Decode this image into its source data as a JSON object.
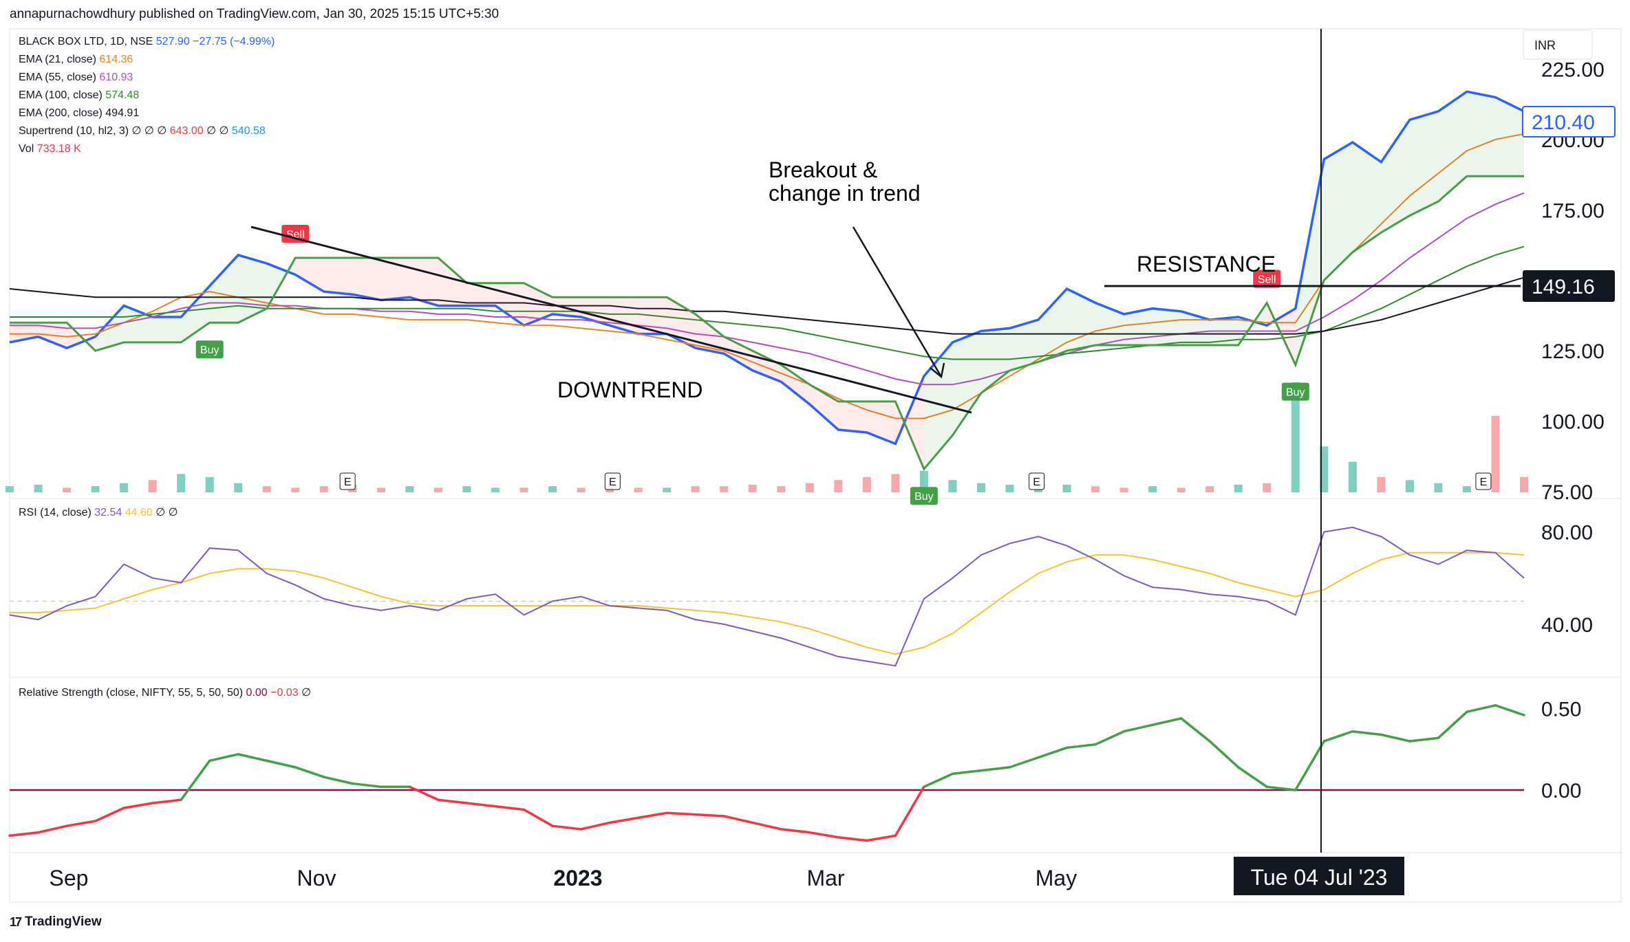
{
  "header": {
    "publisher": "annapurnachowdhury published on TradingView.com, Jan 30, 2025 15:15 UTC+5:30"
  },
  "currency": "INR",
  "legend": {
    "symbol": {
      "name": "BLACK BOX LTD, 1D, NSE",
      "close": "527.90",
      "change": "−27.75 (−4.99%)"
    },
    "ema21": {
      "label": "EMA (21, close)",
      "value": "614.36"
    },
    "ema55": {
      "label": "EMA (55, close)",
      "value": "610.93"
    },
    "ema100": {
      "label": "EMA (100, close)",
      "value": "574.48"
    },
    "ema200": {
      "label": "EMA (200, close)",
      "value": "494.91"
    },
    "supertrend": {
      "label": "Supertrend (10, hl2, 3)",
      "flags": "∅ ∅ ∅",
      "value1": "643.00",
      "flags2": "∅ ∅",
      "value2": "540.58"
    },
    "vol": {
      "label": "Vol",
      "value": "733.18 K"
    }
  },
  "rsi_legend": {
    "label": "RSI (14, close)",
    "value1": "32.54",
    "value2": "44.60",
    "flags": "∅ ∅"
  },
  "rs_legend": {
    "label": "Relative Strength (close, NIFTY, 55, 5, 50, 50)",
    "value1": "0.00",
    "value2": "−0.03",
    "flags": "∅"
  },
  "annotations": {
    "breakout_line1": "Breakout &",
    "breakout_line2": "change in trend",
    "downtrend": "DOWNTREND",
    "resistance": "RESISTANCE"
  },
  "signals": {
    "buy": "Buy",
    "sell": "Sell",
    "earnings": "E"
  },
  "price_badges": {
    "last": "210.40",
    "resistance": "149.16"
  },
  "crosshair_label": "Tue 04 Jul '23",
  "brand": "TradingView",
  "colors": {
    "price": "#2962ff",
    "ema21": "#f0821e",
    "ema55": "#b04dc4",
    "ema100": "#2e8b2e",
    "ema200": "#131722",
    "st_up": "#43a047",
    "st_down": "#f23645",
    "rsi": "#7e57c2",
    "rsi_ma": "#f7c32e",
    "rs_up": "#43a047",
    "rs_down": "#f23645",
    "zero_line": "#880e4f",
    "vol_up": "#7fcfc3",
    "vol_down": "#f6a8ab"
  },
  "chart_data": [
    {
      "type": "line",
      "pane": "price",
      "yaxis_ticks": [
        225,
        200,
        175,
        125,
        100,
        75
      ],
      "ylim": [
        75,
        230
      ],
      "xaxis_ticks": [
        "Sep",
        "Nov",
        "2023",
        "Mar",
        "May",
        "Jul"
      ],
      "x": [
        "2022-08-24",
        "2022-08-31",
        "2022-09-07",
        "2022-09-14",
        "2022-09-21",
        "2022-09-28",
        "2022-10-05",
        "2022-10-12",
        "2022-10-19",
        "2022-10-26",
        "2022-11-02",
        "2022-11-09",
        "2022-11-16",
        "2022-11-23",
        "2022-11-30",
        "2022-12-07",
        "2022-12-14",
        "2022-12-21",
        "2022-12-28",
        "2023-01-04",
        "2023-01-11",
        "2023-01-18",
        "2023-01-25",
        "2023-02-01",
        "2023-02-08",
        "2023-02-15",
        "2023-02-22",
        "2023-03-01",
        "2023-03-08",
        "2023-03-15",
        "2023-03-22",
        "2023-03-29",
        "2023-04-05",
        "2023-04-12",
        "2023-04-19",
        "2023-04-26",
        "2023-05-03",
        "2023-05-10",
        "2023-05-17",
        "2023-05-24",
        "2023-05-31",
        "2023-06-07",
        "2023-06-14",
        "2023-06-21",
        "2023-06-28",
        "2023-07-04",
        "2023-07-11",
        "2023-07-18",
        "2023-07-25",
        "2023-08-01",
        "2023-08-08",
        "2023-08-15",
        "2023-08-22",
        "2023-08-29"
      ],
      "series": [
        {
          "name": "BLACK BOX LTD, 1D, NSE",
          "values": [
            128,
            130,
            126,
            130,
            141,
            137,
            137,
            148,
            159,
            156,
            152,
            146,
            145,
            143,
            144,
            141,
            141,
            141,
            134,
            138,
            137,
            134,
            131,
            131,
            126,
            124,
            118,
            114,
            106,
            97,
            96,
            92,
            116,
            128,
            132,
            133,
            136,
            147,
            142,
            138,
            140,
            139,
            136,
            137,
            134,
            140,
            193,
            199,
            192,
            207,
            210,
            217,
            215,
            210
          ]
        },
        {
          "name": "EMA (21, close)",
          "values": [
            131,
            131,
            130,
            131,
            135,
            139,
            144,
            146,
            144,
            142,
            140,
            138,
            138,
            137,
            136,
            136,
            136,
            135,
            134,
            134,
            133,
            132,
            131,
            129,
            127,
            125,
            121,
            117,
            113,
            108,
            104,
            101,
            101,
            104,
            110,
            116,
            122,
            128,
            132,
            134,
            135,
            136,
            136,
            136,
            135,
            135,
            150,
            160,
            170,
            180,
            188,
            196,
            200,
            202
          ]
        },
        {
          "name": "EMA (55, close)",
          "values": [
            134,
            134,
            133,
            133,
            135,
            137,
            140,
            142,
            142,
            141,
            141,
            140,
            140,
            139,
            139,
            138,
            138,
            137,
            137,
            136,
            136,
            135,
            134,
            133,
            131,
            130,
            128,
            126,
            124,
            121,
            118,
            115,
            113,
            113,
            115,
            118,
            121,
            124,
            127,
            129,
            130,
            131,
            132,
            132,
            132,
            132,
            137,
            143,
            150,
            158,
            165,
            172,
            177,
            181
          ]
        },
        {
          "name": "EMA (100, close)",
          "values": [
            137,
            137,
            137,
            137,
            137,
            138,
            139,
            140,
            141,
            140,
            140,
            140,
            140,
            140,
            140,
            140,
            140,
            139,
            139,
            139,
            139,
            138,
            138,
            137,
            136,
            135,
            134,
            133,
            131,
            129,
            127,
            125,
            123,
            122,
            122,
            122,
            123,
            124,
            125,
            126,
            127,
            128,
            128,
            129,
            129,
            130,
            132,
            136,
            140,
            145,
            150,
            155,
            159,
            162
          ]
        },
        {
          "name": "EMA (200, close)",
          "values": [
            147,
            146,
            145,
            144,
            144,
            144,
            144,
            144,
            144,
            144,
            144,
            144,
            144,
            143,
            143,
            143,
            142,
            142,
            142,
            141,
            141,
            141,
            140,
            140,
            139,
            139,
            138,
            137,
            136,
            135,
            134,
            133,
            132,
            131,
            131,
            131,
            131,
            131,
            131,
            131,
            131,
            131,
            131,
            131,
            131,
            131,
            132,
            134,
            136,
            139,
            142,
            145,
            148,
            151
          ]
        },
        {
          "name": "Supertrend (10, hl2, 3)",
          "values": [
            135,
            135,
            135,
            125,
            128,
            128,
            128,
            135,
            135,
            140,
            158,
            158,
            158,
            158,
            158,
            158,
            149,
            149,
            149,
            144,
            144,
            144,
            144,
            144,
            138,
            130,
            125,
            120,
            113,
            107,
            107,
            107,
            83,
            95,
            110,
            118,
            121,
            125,
            127,
            127,
            127,
            127,
            127,
            127,
            142,
            120,
            150,
            160,
            167,
            173,
            178,
            187,
            187,
            187
          ]
        }
      ],
      "resistance_level": 149.16
    },
    {
      "type": "bar",
      "pane": "volume",
      "note": "relative daily volume bars under price pane",
      "values": [
        4,
        5,
        3,
        4,
        6,
        8,
        12,
        10,
        6,
        4,
        3,
        4,
        5,
        3,
        4,
        3,
        4,
        3,
        3,
        4,
        3,
        4,
        3,
        3,
        4,
        4,
        5,
        4,
        6,
        8,
        10,
        12,
        14,
        8,
        6,
        5,
        4,
        5,
        4,
        3,
        4,
        3,
        4,
        5,
        6,
        72,
        30,
        20,
        10,
        8,
        6,
        4,
        50,
        10
      ]
    },
    {
      "type": "line",
      "pane": "rsi",
      "yaxis_ticks": [
        80,
        40
      ],
      "ylim": [
        20,
        90
      ],
      "series": [
        {
          "name": "RSI (14, close)",
          "values": [
            44,
            42,
            48,
            52,
            66,
            60,
            58,
            73,
            72,
            62,
            57,
            51,
            48,
            46,
            48,
            46,
            51,
            53,
            44,
            50,
            52,
            48,
            47,
            46,
            42,
            40,
            37,
            34,
            30,
            26,
            24,
            22,
            51,
            60,
            70,
            75,
            78,
            74,
            68,
            61,
            56,
            55,
            53,
            52,
            50,
            44,
            80,
            82,
            78,
            70,
            66,
            72,
            71,
            60
          ]
        },
        {
          "name": "RSI MA",
          "values": [
            45,
            45,
            46,
            47,
            51,
            55,
            58,
            62,
            64,
            64,
            63,
            60,
            56,
            52,
            49,
            48,
            48,
            48,
            48,
            48,
            48,
            48,
            48,
            47,
            46,
            45,
            43,
            41,
            38,
            34,
            30,
            27,
            30,
            36,
            45,
            54,
            62,
            67,
            70,
            70,
            68,
            65,
            62,
            58,
            55,
            52,
            55,
            62,
            68,
            71,
            71,
            71,
            71,
            70
          ]
        }
      ]
    },
    {
      "type": "line",
      "pane": "relative_strength",
      "yaxis_ticks": [
        0.5,
        0.0
      ],
      "ylim": [
        -0.35,
        0.65
      ],
      "series": [
        {
          "name": "Relative Strength (close, NIFTY, 55, 5, 50, 50)",
          "values": [
            -0.28,
            -0.26,
            -0.22,
            -0.19,
            -0.11,
            -0.08,
            -0.06,
            0.18,
            0.22,
            0.18,
            0.14,
            0.08,
            0.04,
            0.02,
            0.02,
            -0.06,
            -0.08,
            -0.1,
            -0.12,
            -0.22,
            -0.24,
            -0.2,
            -0.17,
            -0.14,
            -0.15,
            -0.16,
            -0.2,
            -0.24,
            -0.26,
            -0.29,
            -0.31,
            -0.28,
            0.02,
            0.1,
            0.12,
            0.14,
            0.2,
            0.26,
            0.28,
            0.36,
            0.4,
            0.44,
            0.3,
            0.14,
            0.02,
            0.0,
            0.3,
            0.36,
            0.34,
            0.3,
            0.32,
            0.48,
            0.52,
            0.46
          ]
        }
      ]
    }
  ]
}
